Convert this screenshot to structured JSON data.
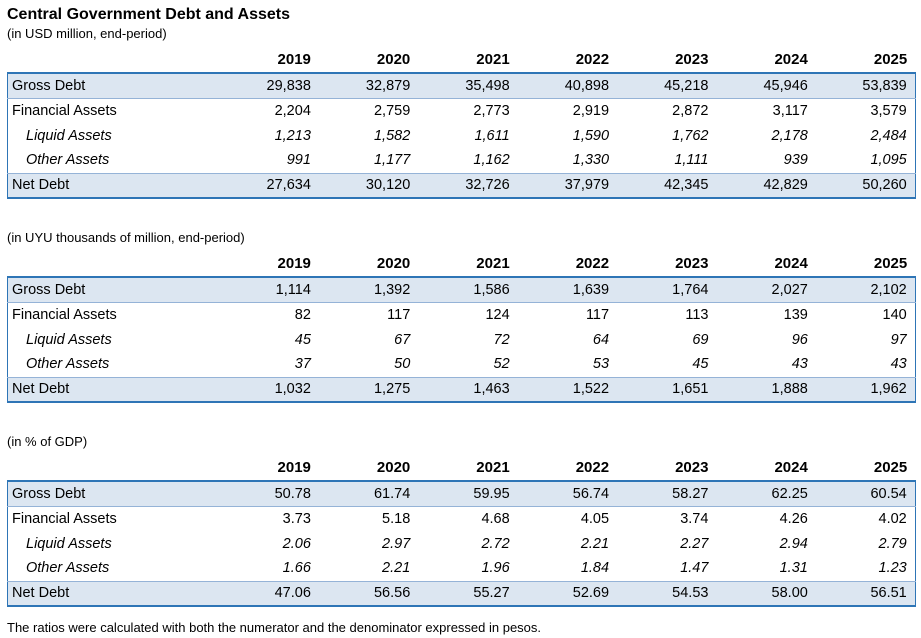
{
  "title": "Central Government Debt and Assets",
  "years": [
    "2019",
    "2020",
    "2021",
    "2022",
    "2023",
    "2024",
    "2025"
  ],
  "tables": [
    {
      "subtitle": "(in USD million, end-period)",
      "rows": [
        {
          "label": "Gross Debt",
          "style": "band",
          "values": [
            "29,838",
            "32,879",
            "35,498",
            "40,898",
            "45,218",
            "45,946",
            "53,839"
          ]
        },
        {
          "label": "Financial Assets",
          "style": "plain",
          "values": [
            "2,204",
            "2,759",
            "2,773",
            "2,919",
            "2,872",
            "3,117",
            "3,579"
          ]
        },
        {
          "label": "Liquid Assets",
          "style": "sub",
          "values": [
            "1,213",
            "1,582",
            "1,611",
            "1,590",
            "1,762",
            "2,178",
            "2,484"
          ]
        },
        {
          "label": "Other Assets",
          "style": "sub",
          "values": [
            "991",
            "1,177",
            "1,162",
            "1,330",
            "1,111",
            "939",
            "1,095"
          ]
        },
        {
          "label": "Net Debt",
          "style": "band",
          "values": [
            "27,634",
            "30,120",
            "32,726",
            "37,979",
            "42,345",
            "42,829",
            "50,260"
          ]
        }
      ]
    },
    {
      "subtitle": "(in UYU thousands of million, end-period)",
      "rows": [
        {
          "label": "Gross Debt",
          "style": "band",
          "values": [
            "1,114",
            "1,392",
            "1,586",
            "1,639",
            "1,764",
            "2,027",
            "2,102"
          ]
        },
        {
          "label": "Financial Assets",
          "style": "plain",
          "values": [
            "82",
            "117",
            "124",
            "117",
            "113",
            "139",
            "140"
          ]
        },
        {
          "label": "Liquid Assets",
          "style": "sub",
          "values": [
            "45",
            "67",
            "72",
            "64",
            "69",
            "96",
            "97"
          ]
        },
        {
          "label": "Other Assets",
          "style": "sub",
          "values": [
            "37",
            "50",
            "52",
            "53",
            "45",
            "43",
            "43"
          ]
        },
        {
          "label": "Net Debt",
          "style": "band",
          "values": [
            "1,032",
            "1,275",
            "1,463",
            "1,522",
            "1,651",
            "1,888",
            "1,962"
          ]
        }
      ]
    },
    {
      "subtitle": "(in % of GDP)",
      "rows": [
        {
          "label": "Gross Debt",
          "style": "band",
          "values": [
            "50.78",
            "61.74",
            "59.95",
            "56.74",
            "58.27",
            "62.25",
            "60.54"
          ]
        },
        {
          "label": "Financial Assets",
          "style": "plain",
          "values": [
            "3.73",
            "5.18",
            "4.68",
            "4.05",
            "3.74",
            "4.26",
            "4.02"
          ]
        },
        {
          "label": "Liquid Assets",
          "style": "sub",
          "values": [
            "2.06",
            "2.97",
            "2.72",
            "2.21",
            "2.27",
            "2.94",
            "2.79"
          ]
        },
        {
          "label": "Other Assets",
          "style": "sub",
          "values": [
            "1.66",
            "2.21",
            "1.96",
            "1.84",
            "1.47",
            "1.31",
            "1.23"
          ]
        },
        {
          "label": "Net Debt",
          "style": "band",
          "values": [
            "47.06",
            "56.56",
            "55.27",
            "52.69",
            "54.53",
            "58.00",
            "56.51"
          ]
        }
      ]
    }
  ],
  "footnote": "The ratios were calculated with both the numerator and the denominator expressed in pesos.",
  "colors": {
    "band_fill": "#dce6f1",
    "table_border": "#2e75b6",
    "band_separator": "#95b3d7",
    "text": "#000000"
  }
}
